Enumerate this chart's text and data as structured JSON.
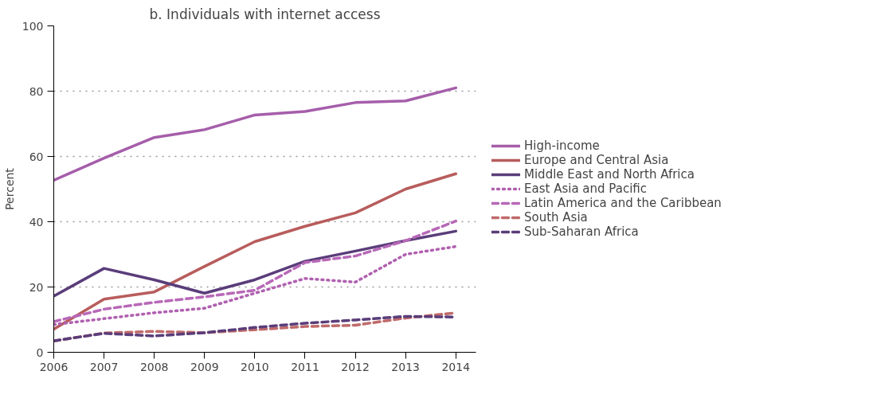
{
  "chart_data": {
    "type": "line",
    "title": "b. Individuals with internet access",
    "ylabel": "Percent",
    "x": [
      2006,
      2007,
      2008,
      2009,
      2010,
      2011,
      2012,
      2013,
      2014
    ],
    "xlim": [
      2006,
      2014.4
    ],
    "xticks": [
      2006,
      2007,
      2008,
      2009,
      2010,
      2011,
      2012,
      2013,
      2014
    ],
    "ylim": [
      0,
      100
    ],
    "yticks": [
      0,
      20,
      40,
      60,
      80,
      100
    ],
    "grid": "y",
    "legend": "right",
    "marker": "none",
    "series": [
      {
        "name": "High-income",
        "color": "#a55eaa",
        "line_style": "solid",
        "values": [
          52.7,
          59.5,
          65.8,
          68.2,
          72.7,
          73.8,
          76.5,
          77,
          81
        ]
      },
      {
        "name": "Europe and Central Asia",
        "color": "#b85c5c",
        "line_style": "solid",
        "values": [
          7.1,
          16.3,
          18.5,
          26.3,
          33.9,
          38.6,
          42.7,
          50,
          54.7
        ]
      },
      {
        "name": "Middle East and North Africa",
        "color": "#5a3d7a",
        "line_style": "solid",
        "values": [
          17.2,
          25.7,
          22.2,
          18.1,
          22.2,
          27.9,
          31,
          34.2,
          37.1
        ]
      },
      {
        "name": "East Asia and Pacific",
        "color": "#b060b0",
        "line_style": "dotted",
        "values": [
          8.5,
          10.3,
          12.1,
          13.5,
          18.1,
          22.6,
          21.5,
          30,
          32.4
        ]
      },
      {
        "name": "Latin America and the Caribbean",
        "color": "#b868b8",
        "line_style": "dashed",
        "values": [
          9.4,
          13.2,
          15.3,
          17,
          19,
          27.5,
          29.5,
          34.2,
          40.2
        ]
      },
      {
        "name": "South Asia",
        "color": "#c06a6a",
        "line_style": "dashed",
        "values": [
          3.5,
          5.9,
          6.4,
          6,
          6.9,
          7.9,
          8.3,
          10.5,
          12.1
        ]
      },
      {
        "name": "Sub-Saharan Africa",
        "color": "#5a3d7a",
        "line_style": "dashed",
        "values": [
          3.5,
          5.8,
          5,
          6,
          7.6,
          8.9,
          9.9,
          11,
          10.8
        ]
      }
    ]
  }
}
